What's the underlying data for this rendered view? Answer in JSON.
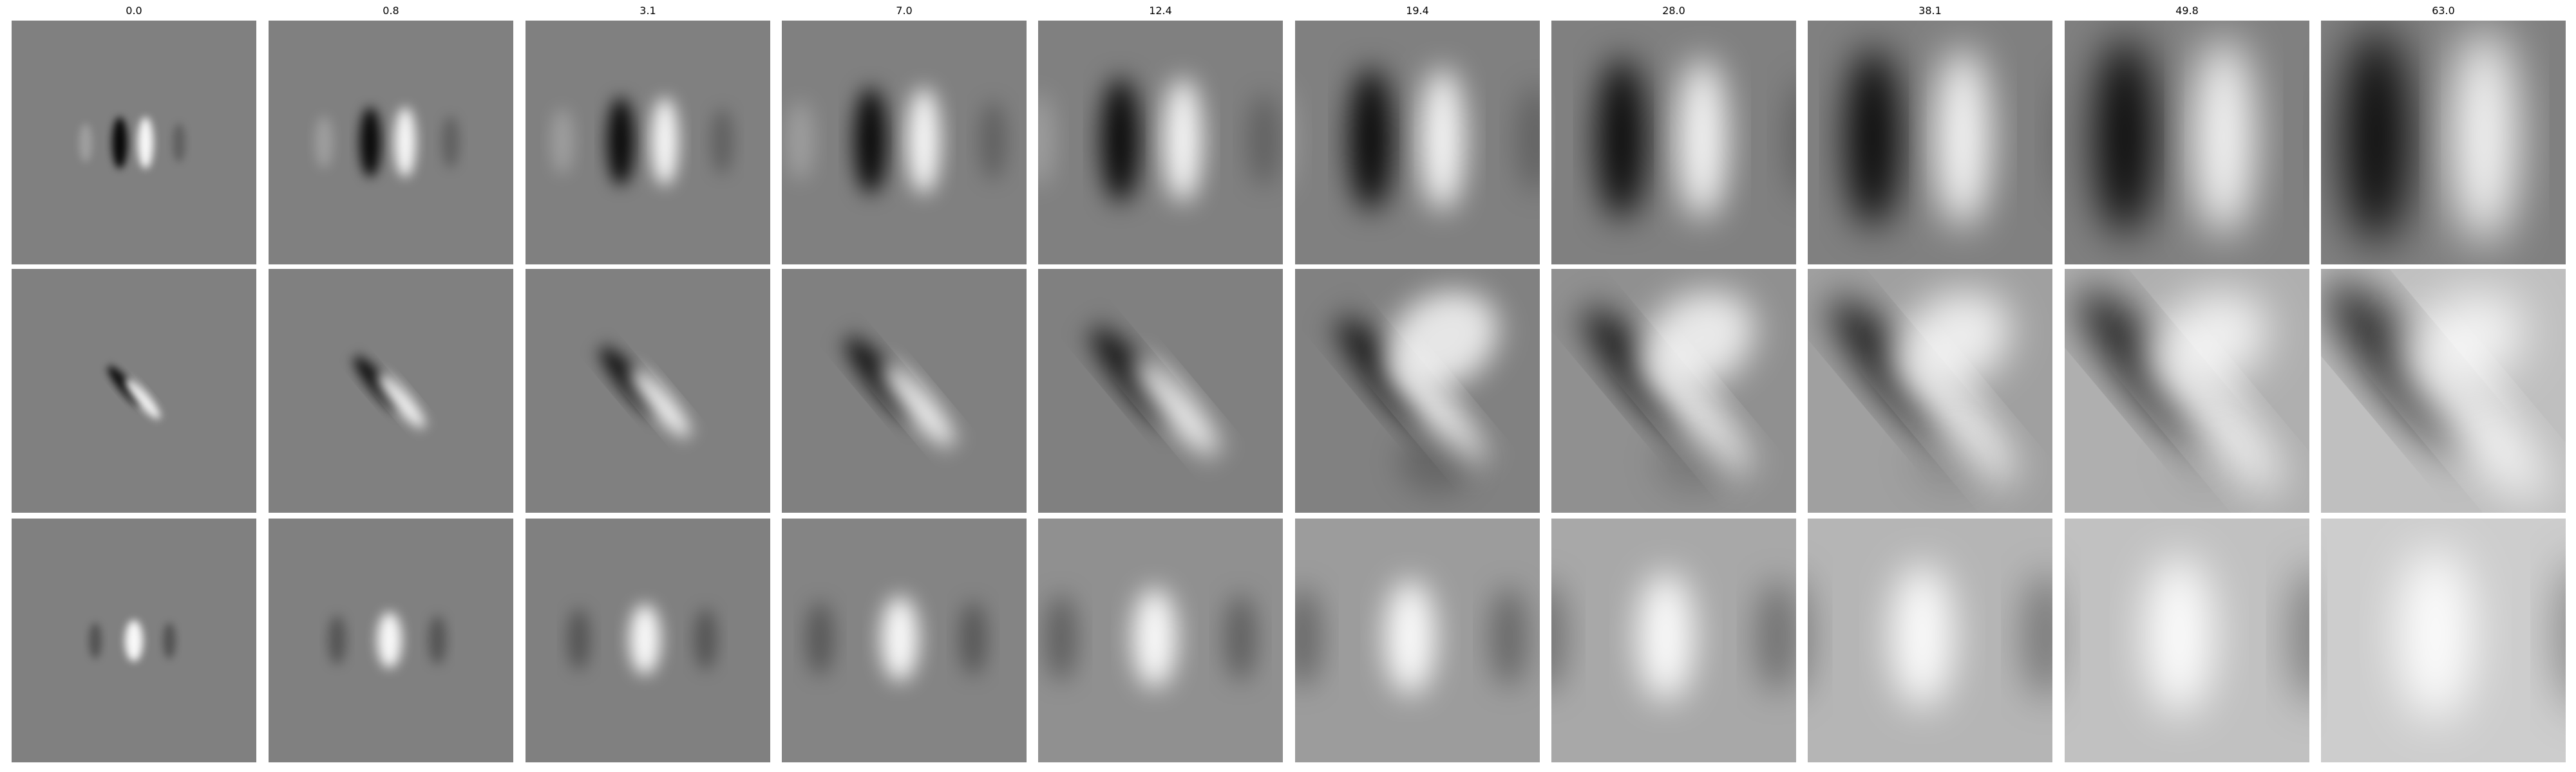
{
  "figure": {
    "column_titles": [
      "0.0",
      "0.8",
      "3.1",
      "7.0",
      "12.4",
      "19.4",
      "28.0",
      "38.1",
      "49.8",
      "63.0"
    ],
    "rows": 3,
    "colormap": "gray",
    "background": "#ffffff"
  }
}
